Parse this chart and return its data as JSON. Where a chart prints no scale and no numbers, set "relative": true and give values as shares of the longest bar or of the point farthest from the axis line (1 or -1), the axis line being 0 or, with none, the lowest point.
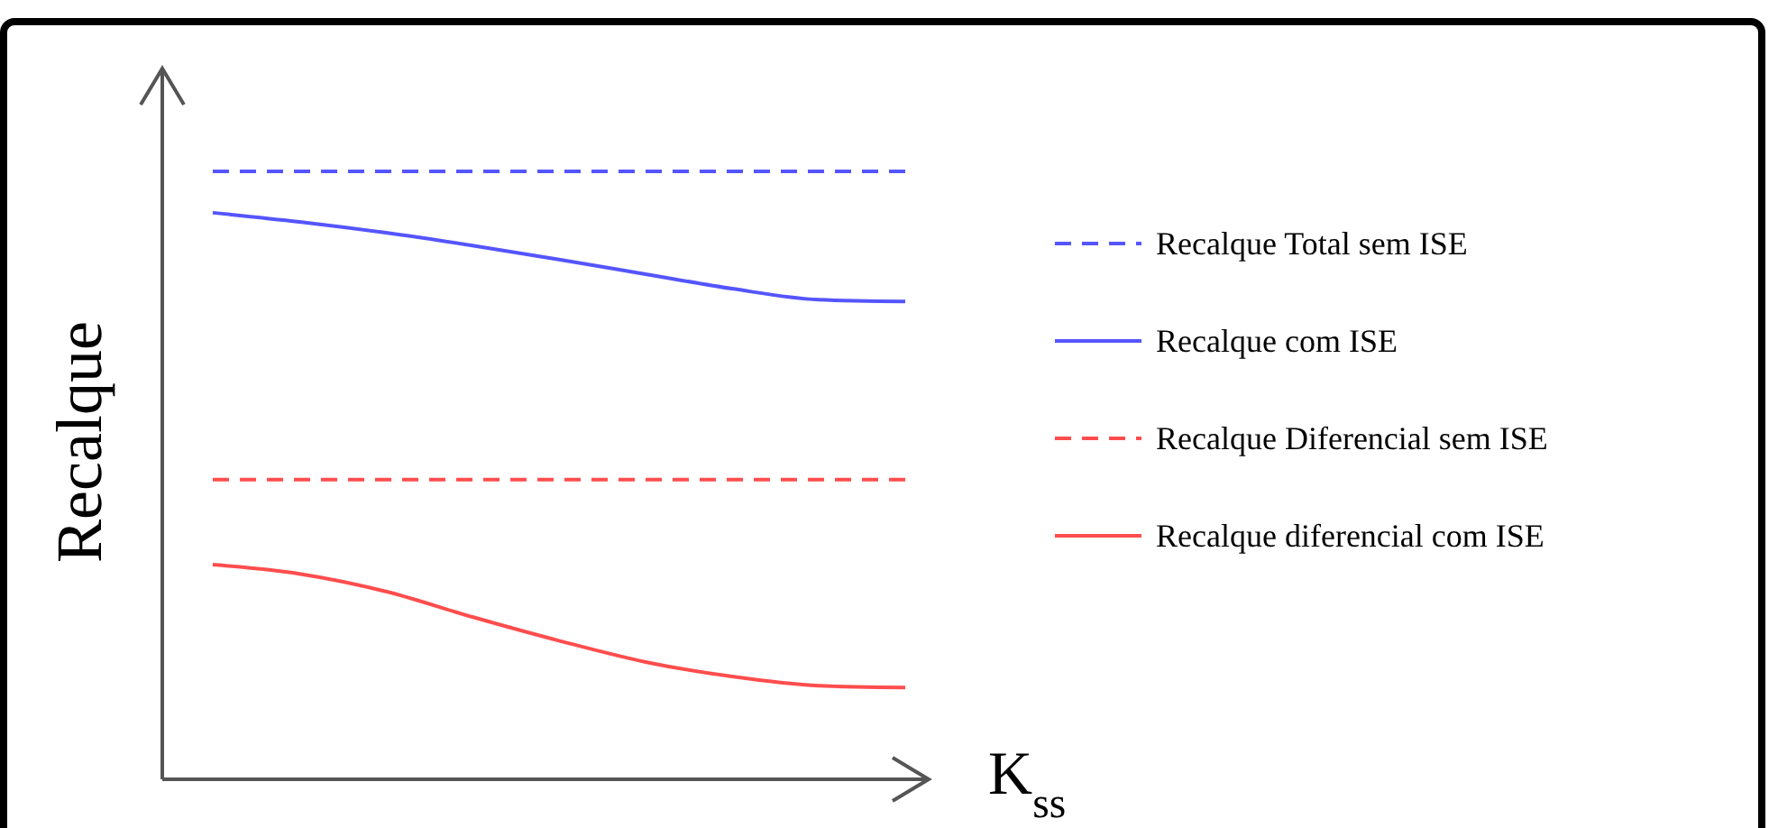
{
  "chart_data": {
    "type": "line",
    "relative": true,
    "xlabel": "K$_{ss}$",
    "ylabel": "Recalque",
    "legend": "right",
    "categories": [
      null,
      null,
      null,
      null,
      null,
      null,
      null,
      null,
      null
    ],
    "series": [
      {
        "name": "Recalque Total sem ISE",
        "color": "#5555ff",
        "line_style": "dashed",
        "values": [
          1,
          1,
          1,
          1,
          1,
          1,
          1,
          1,
          1
        ]
      },
      {
        "name": "Recalque com ISE",
        "color": "#5555ff",
        "line_style": "solid",
        "values": [
          0.932,
          0.917,
          0.899,
          0.878,
          0.855,
          0.831,
          0.807,
          0.789,
          0.786
        ]
      },
      {
        "name": "Recalque Diferencial sem ISE",
        "color": "#ff4d4d",
        "line_style": "dashed",
        "values": [
          0.493,
          0.493,
          0.493,
          0.493,
          0.493,
          0.493,
          0.493,
          0.493,
          0.493
        ]
      },
      {
        "name": "Recalque diferencial com ISE",
        "color": "#ff4d4d",
        "line_style": "solid",
        "values": [
          0.353,
          0.338,
          0.309,
          0.267,
          0.228,
          0.193,
          0.169,
          0.154,
          0.151
        ]
      }
    ]
  }
}
